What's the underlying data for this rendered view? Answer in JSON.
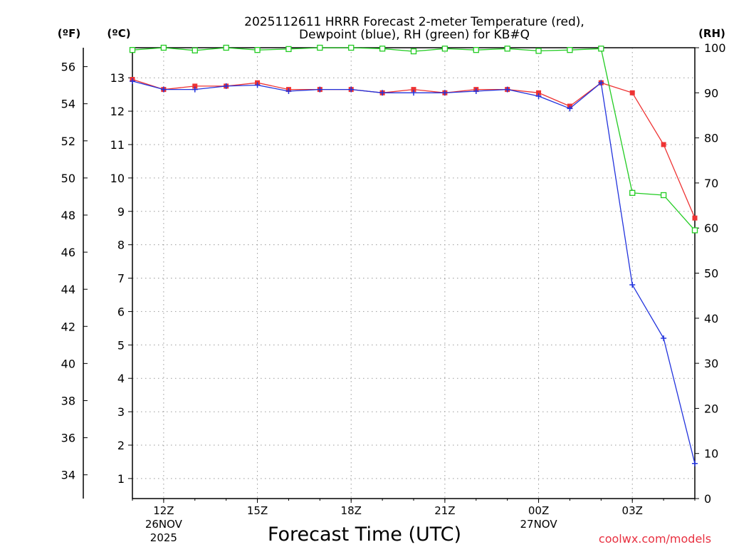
{
  "chart_data": {
    "type": "line",
    "title_line1": "2025112611 HRRR Forecast 2-meter Temperature (red),",
    "title_line2": "Dewpoint (blue), RH (green) for KB#Q",
    "xlabel": "Forecast Time (UTC)",
    "watermark": "coolwx.com/models",
    "unit_f": "(ºF)",
    "unit_c": "(ºC)",
    "unit_rh": "(RH)",
    "x_hours": [
      11,
      12,
      13,
      14,
      15,
      16,
      17,
      18,
      19,
      20,
      21,
      22,
      23,
      24,
      25,
      26,
      27,
      28,
      29
    ],
    "xlim": [
      11,
      29
    ],
    "x_ticks": [
      {
        "hour": 12,
        "line1": "12Z",
        "line2": "26NOV",
        "line3": "2025"
      },
      {
        "hour": 15,
        "line1": "15Z",
        "line2": "",
        "line3": ""
      },
      {
        "hour": 18,
        "line1": "18Z",
        "line2": "",
        "line3": ""
      },
      {
        "hour": 21,
        "line1": "21Z",
        "line2": "",
        "line3": ""
      },
      {
        "hour": 24,
        "line1": "00Z",
        "line2": "27NOV",
        "line3": ""
      },
      {
        "hour": 27,
        "line1": "03Z",
        "line2": "",
        "line3": ""
      }
    ],
    "ylim_c": [
      0.4,
      13.9
    ],
    "y_ticks_c": [
      1,
      2,
      3,
      4,
      5,
      6,
      7,
      8,
      9,
      10,
      11,
      12,
      13
    ],
    "y_ticks_f": [
      34,
      36,
      38,
      40,
      42,
      44,
      46,
      48,
      50,
      52,
      54,
      56
    ],
    "ylim_rh": [
      0,
      100
    ],
    "y_ticks_rh": [
      0,
      10,
      20,
      30,
      40,
      50,
      60,
      70,
      80,
      90,
      100
    ],
    "series": [
      {
        "name": "Temperature",
        "axis": "c",
        "color": "#ee3333",
        "marker": "square-filled",
        "values": [
          12.95,
          12.65,
          12.75,
          12.75,
          12.85,
          12.65,
          12.65,
          12.65,
          12.55,
          12.65,
          12.55,
          12.65,
          12.65,
          12.55,
          12.15,
          12.85,
          12.55,
          11.0,
          8.8
        ]
      },
      {
        "name": "Dewpoint",
        "axis": "c",
        "color": "#2233dd",
        "marker": "plus",
        "values": [
          12.9,
          12.65,
          12.65,
          12.75,
          12.78,
          12.6,
          12.65,
          12.65,
          12.55,
          12.55,
          12.55,
          12.6,
          12.65,
          12.45,
          12.08,
          12.85,
          6.8,
          5.2,
          1.45
        ]
      },
      {
        "name": "RH",
        "axis": "rh",
        "color": "#22cc22",
        "marker": "square-open",
        "values": [
          99.5,
          100,
          99.4,
          100,
          99.5,
          99.7,
          100,
          100,
          99.8,
          99.2,
          99.8,
          99.5,
          99.8,
          99.3,
          99.5,
          99.8,
          67.8,
          67.3,
          59.5
        ]
      }
    ]
  }
}
